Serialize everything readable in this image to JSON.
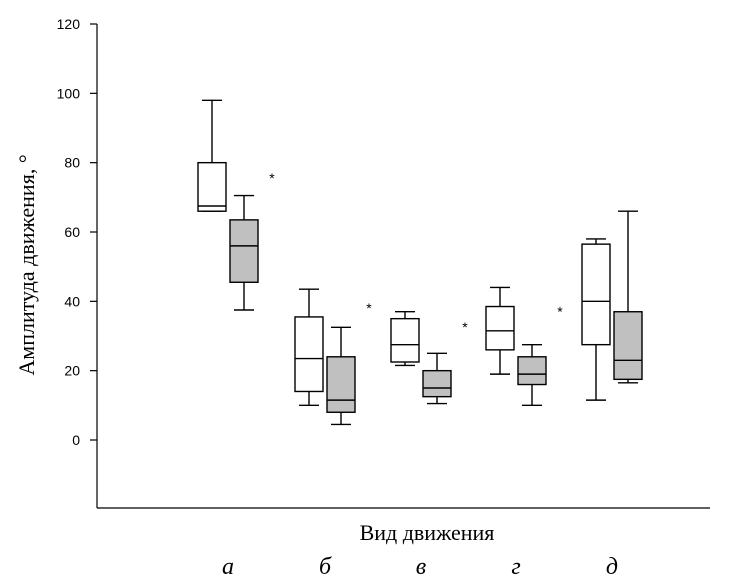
{
  "chart_data": {
    "type": "box",
    "xlabel": "Вид движения",
    "ylabel": "Амплитуда движения, °",
    "ylim": [
      -18,
      120
    ],
    "yticks": [
      0,
      20,
      40,
      60,
      80,
      100,
      120
    ],
    "categories": [
      "а",
      "б",
      "в",
      "г",
      "д"
    ],
    "series": [
      {
        "color": "#ffffff",
        "boxes": [
          {
            "min": 66,
            "q1": 66,
            "median": 67.5,
            "q3": 80,
            "max": 98
          },
          {
            "min": 10,
            "q1": 14,
            "median": 23.5,
            "q3": 35.5,
            "max": 43.5
          },
          {
            "min": 21.5,
            "q1": 22.5,
            "median": 27.5,
            "q3": 35,
            "max": 37
          },
          {
            "min": 19,
            "q1": 26,
            "median": 31.5,
            "q3": 38.5,
            "max": 44
          },
          {
            "min": 11.5,
            "q1": 27.5,
            "median": 40,
            "q3": 56.5,
            "max": 58
          }
        ]
      },
      {
        "color": "#c0c0c0",
        "boxes": [
          {
            "min": 37.5,
            "q1": 45.5,
            "median": 56,
            "q3": 63.5,
            "max": 70.5
          },
          {
            "min": 4.5,
            "q1": 8,
            "median": 11.5,
            "q3": 24,
            "max": 32.5
          },
          {
            "min": 10.5,
            "q1": 12.5,
            "median": 15,
            "q3": 20,
            "max": 25
          },
          {
            "min": 10,
            "q1": 16,
            "median": 19,
            "q3": 24,
            "max": 27.5
          },
          {
            "min": 16.5,
            "q1": 17.5,
            "median": 23,
            "q3": 37,
            "max": 66
          }
        ]
      }
    ],
    "significance": [
      {
        "category": 0,
        "mark": "*",
        "y": 76.5
      },
      {
        "category": 1,
        "mark": "*",
        "y": 39
      },
      {
        "category": 2,
        "mark": "*",
        "y": 33.5
      },
      {
        "category": 3,
        "mark": "*",
        "y": 38
      }
    ]
  }
}
